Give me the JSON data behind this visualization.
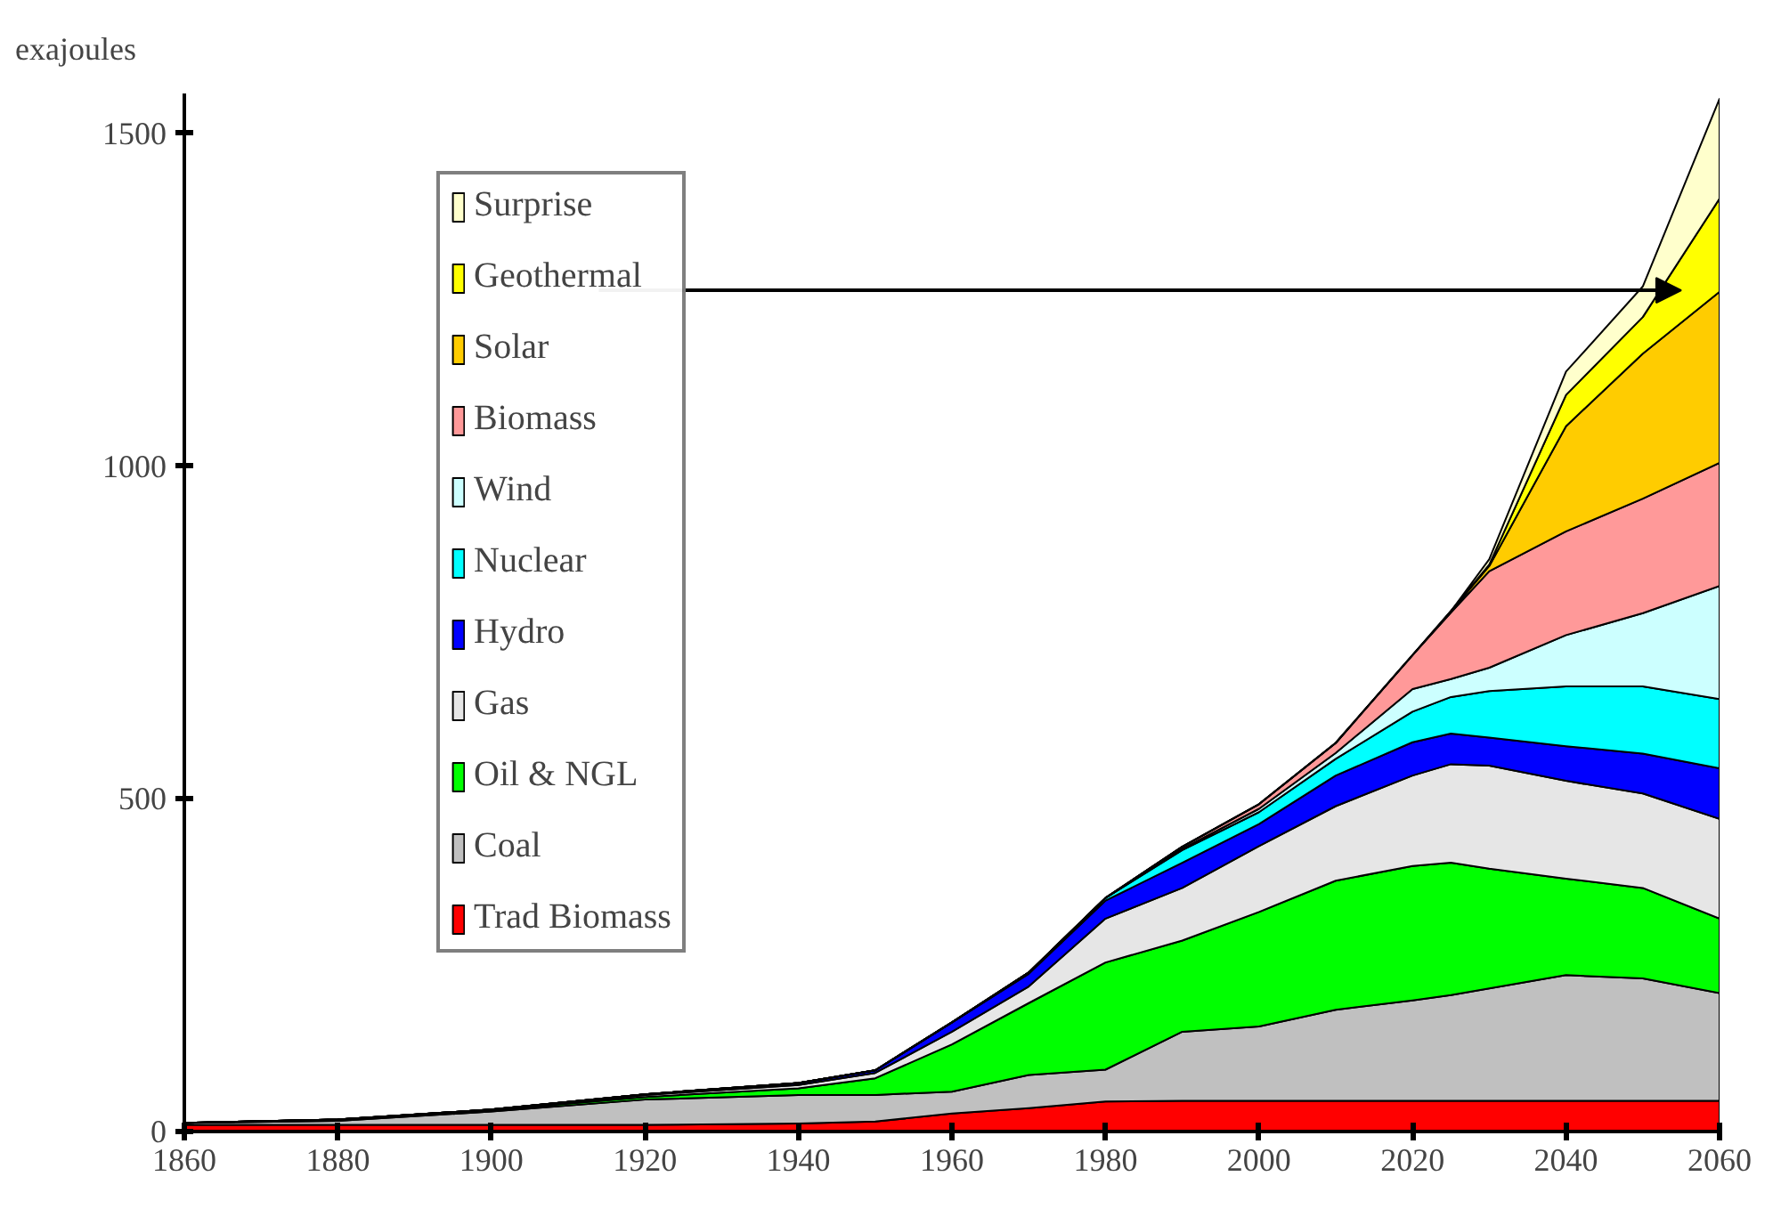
{
  "chart_data": {
    "type": "area",
    "stacked": true,
    "ylabel": "exajoules",
    "x": [
      1860,
      1880,
      1900,
      1920,
      1940,
      1950,
      1960,
      1970,
      1980,
      1990,
      2000,
      2010,
      2020,
      2025,
      2030,
      2040,
      2050,
      2060
    ],
    "series": [
      {
        "name": "Trad Biomass",
        "color": "#ff0000",
        "values": [
          10,
          10,
          10,
          10,
          12,
          15,
          27,
          35,
          45,
          46,
          46,
          46,
          46,
          46,
          46,
          46,
          46,
          46
        ]
      },
      {
        "name": "Coal",
        "color": "#c0c0c0",
        "values": [
          3,
          6,
          20,
          38,
          43,
          40,
          33,
          50,
          48,
          104,
          112,
          137,
          151,
          159,
          169,
          189,
          184,
          162
        ]
      },
      {
        "name": "Oil & NGL",
        "color": "#00ff00",
        "values": [
          0,
          2,
          2,
          4,
          10,
          25,
          71,
          108,
          161,
          137,
          172,
          194,
          202,
          199,
          180,
          145,
          136,
          112
        ]
      },
      {
        "name": "Gas",
        "color": "#e6e6e6",
        "values": [
          0,
          0,
          1,
          3,
          5,
          8,
          19,
          25,
          66,
          79,
          99,
          112,
          136,
          148,
          155,
          147,
          142,
          150
        ]
      },
      {
        "name": "Hydro",
        "color": "#0000ff",
        "values": [
          0,
          0,
          0,
          1,
          3,
          4,
          14,
          19,
          27,
          38,
          33,
          46,
          50,
          46,
          42,
          52,
          60,
          76
        ]
      },
      {
        "name": "Nuclear",
        "color": "#00ffff",
        "values": [
          0,
          0,
          0,
          0,
          0,
          0,
          0,
          2,
          4,
          19,
          18,
          25,
          46,
          55,
          70,
          90,
          101,
          104
        ]
      },
      {
        "name": "Wind",
        "color": "#ccffff",
        "values": [
          0,
          0,
          0,
          0,
          0,
          0,
          0,
          0,
          0,
          2,
          5,
          9,
          34,
          27,
          35,
          77,
          110,
          170
        ]
      },
      {
        "name": "Biomass",
        "color": "#ff9999",
        "values": [
          0,
          0,
          0,
          0,
          0,
          0,
          0,
          0,
          0,
          3,
          7,
          15,
          51,
          100,
          145,
          156,
          172,
          185
        ]
      },
      {
        "name": "Solar",
        "color": "#ffcc00",
        "values": [
          0,
          0,
          0,
          0,
          0,
          0,
          0,
          0,
          0,
          0,
          0,
          0,
          0,
          2,
          8,
          158,
          218,
          257
        ]
      },
      {
        "name": "Geothermal",
        "color": "#ffff00",
        "values": [
          0,
          0,
          0,
          0,
          0,
          0,
          0,
          0,
          0,
          0,
          0,
          0,
          0,
          0,
          2,
          47,
          55,
          140
        ]
      },
      {
        "name": "Surprise",
        "color": "#ffffcc",
        "values": [
          0,
          0,
          0,
          0,
          0,
          0,
          0,
          0,
          0,
          0,
          0,
          0,
          0,
          0,
          8,
          35,
          46,
          150
        ]
      }
    ],
    "xlim": [
      1860,
      2060
    ],
    "xticks": [
      1860,
      1880,
      1900,
      1920,
      1940,
      1960,
      1980,
      2000,
      2020,
      2040,
      2060
    ],
    "ylim": [
      0,
      1560
    ],
    "yticks": [
      0,
      500,
      1000,
      1500
    ],
    "legend": "top left",
    "grid": false
  }
}
